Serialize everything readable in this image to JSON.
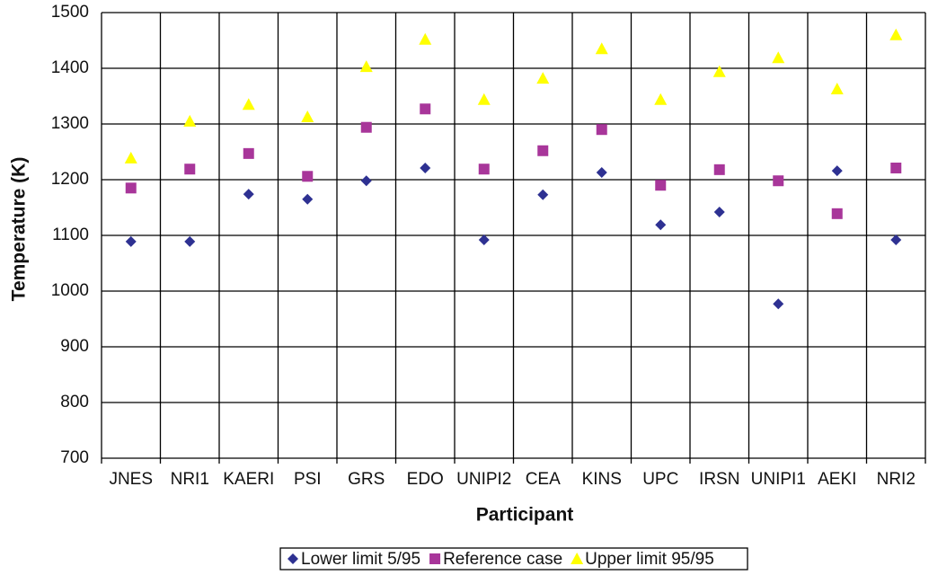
{
  "chart_data": {
    "type": "scatter",
    "x_label": "Participant",
    "y_label": "Temperature (K)",
    "categories": [
      "JNES",
      "NRI1",
      "KAERI",
      "PSI",
      "GRS",
      "EDO",
      "UNIPI2",
      "CEA",
      "KINS",
      "UPC",
      "IRSN",
      "UNIPI1",
      "AEKI",
      "NRI2"
    ],
    "series": [
      {
        "name": "Lower limit 5/95",
        "color": "#2e3192",
        "marker": "diamond",
        "values": [
          1089,
          1089,
          1174,
          1165,
          1198,
          1221,
          1092,
          1173,
          1213,
          1119,
          1142,
          977,
          1216,
          1092
        ]
      },
      {
        "name": "Reference case",
        "color": "#a8369a",
        "marker": "square",
        "values": [
          1185,
          1219,
          1247,
          1206,
          1294,
          1327,
          1219,
          1252,
          1290,
          1190,
          1218,
          1198,
          1139,
          1221
        ]
      },
      {
        "name": "Upper limit 95/95",
        "color": "#ffff00",
        "marker": "triangle",
        "values": [
          1239,
          1305,
          1335,
          1313,
          1403,
          1452,
          1344,
          1382,
          1435,
          1344,
          1394,
          1419,
          1363,
          1460
        ]
      }
    ],
    "ylim": [
      700,
      1500
    ],
    "yticks": [
      700,
      800,
      900,
      1000,
      1100,
      1200,
      1300,
      1400,
      1500
    ],
    "grid": true,
    "legend": "bottom"
  }
}
